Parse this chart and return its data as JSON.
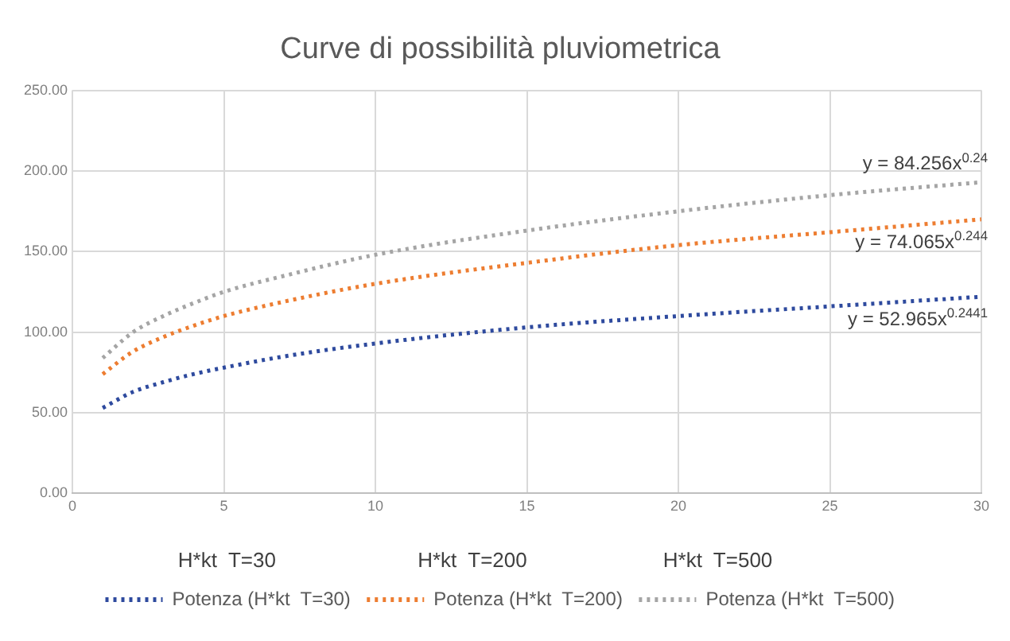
{
  "chart_data": {
    "type": "line",
    "title": "Curve di possibilità pluviometrica",
    "x": [
      1,
      2,
      3,
      4,
      5,
      7,
      10,
      15,
      20,
      25,
      30
    ],
    "series": [
      {
        "name": "Potenza (H*kt  T=30)",
        "color": "#2e4a9e",
        "values": [
          53,
          63,
          69,
          74,
          78,
          85,
          93,
          103,
          110,
          116,
          122
        ]
      },
      {
        "name": "Potenza (H*kt  T=200)",
        "color": "#ed7d31",
        "values": [
          74,
          88,
          97,
          104,
          110,
          119,
          130,
          143,
          154,
          162,
          170
        ]
      },
      {
        "name": "Potenza (H*kt  T=500)",
        "color": "#a5a5a5",
        "values": [
          84,
          100,
          110,
          118,
          125,
          135,
          148,
          163,
          175,
          185,
          193
        ]
      }
    ],
    "xlim": [
      0,
      30
    ],
    "xticks": [
      0,
      5,
      10,
      15,
      20,
      25,
      30
    ],
    "ylim": [
      0,
      250
    ],
    "yticks": [
      {
        "value": 0,
        "label": "0.00"
      },
      {
        "value": 50,
        "label": "50.00"
      },
      {
        "value": 100,
        "label": "100.00"
      },
      {
        "value": 150,
        "label": "150.00"
      },
      {
        "value": 200,
        "label": "200.00"
      },
      {
        "value": 250,
        "label": "250.00"
      }
    ],
    "grid": true,
    "legend": "bottom",
    "marker": "none",
    "line_style": "dotted",
    "annotations": [
      "y = 84.256x$^{0.24}$",
      "y = 74.065x$^{0.244}$",
      "y = 52.965x$^{0.2441}$",
      "H*kt  T=30",
      "H*kt  T=200",
      "H*kt  T=500"
    ]
  }
}
